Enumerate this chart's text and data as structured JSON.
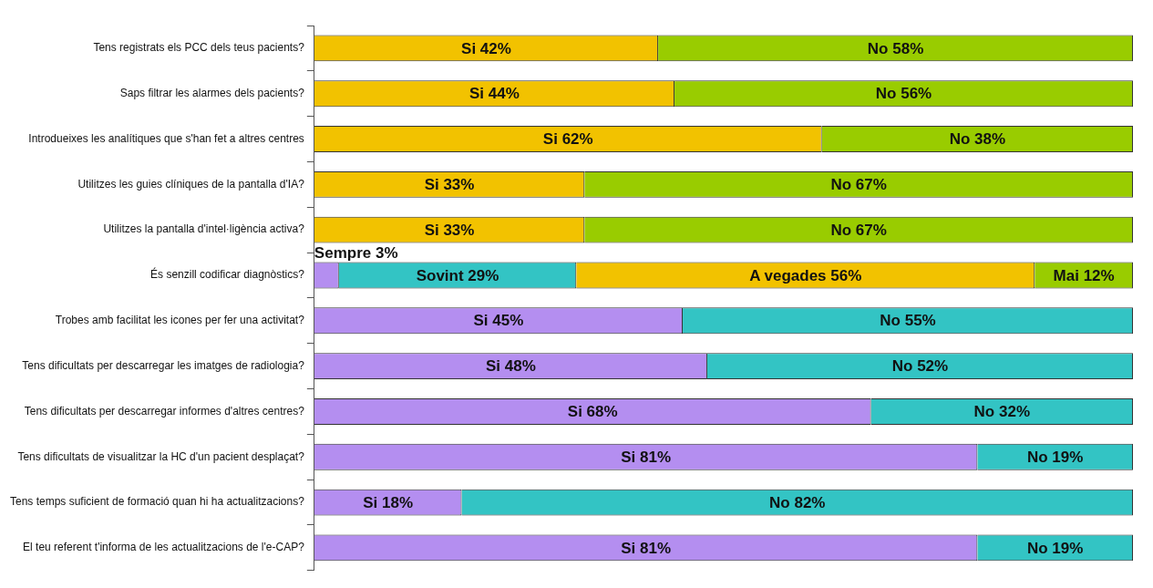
{
  "chart_data": {
    "type": "bar",
    "orientation": "horizontal",
    "stacked": true,
    "xlim": [
      0,
      100
    ],
    "tick_labels": "y",
    "categories": [
      "Tens registrats els PCC dels teus pacients?",
      "Saps filtrar les alarmes dels pacients?",
      "Introdueixes les analítiques que s'han fet a altres centres",
      "Utilitzes les guies clíniques de la pantalla d'IA?",
      "Utilitzes la pantalla d'intel·ligència activa?",
      "És senzill codificar diagnòstics?",
      "Trobes amb facilitat les icones per fer una activitat?",
      "Tens dificultats per descarregar les imatges de radiologia?",
      "Tens dificultats per descarregar informes d'altres centres?",
      "Tens dificultats de visualitzar la HC d'un pacient desplaçat?",
      "Tens temps suficient de formació quan hi ha actualitzacions?",
      "El teu referent t'informa de les actualitzacions de l'e-CAP?"
    ],
    "series": [
      {
        "values": [
          42,
          44,
          62,
          33,
          33,
          3,
          45,
          48,
          68,
          81,
          18,
          81
        ],
        "colors": [
          "#f2c200",
          "#f2c200",
          "#f2c200",
          "#f2c200",
          "#f2c200",
          "#b48ef0",
          "#b48ef0",
          "#b48ef0",
          "#b48ef0",
          "#b48ef0",
          "#b48ef0",
          "#b48ef0"
        ],
        "value_labels": [
          "Si 42%",
          "Si 44%",
          "Si 62%",
          "Si 33%",
          "Si 33%",
          "Sempre 3%",
          "Si 45%",
          "Si 48%",
          "Si 68%",
          "Si 81%",
          "Si 18%",
          "Si 81%"
        ]
      },
      {
        "values": [
          58,
          56,
          38,
          67,
          67,
          29,
          55,
          52,
          32,
          19,
          82,
          19
        ],
        "colors": [
          "#99cc00",
          "#99cc00",
          "#99cc00",
          "#99cc00",
          "#99cc00",
          "#33c4c4",
          "#33c4c4",
          "#33c4c4",
          "#33c4c4",
          "#33c4c4",
          "#33c4c4",
          "#33c4c4"
        ],
        "value_labels": [
          "No 58%",
          "No 56%",
          "No 38%",
          "No 67%",
          "No 67%",
          "Sovint 29%",
          "No 55%",
          "No 52%",
          "No 32%",
          "No 19%",
          "No 82%",
          "No 19%"
        ]
      },
      {
        "values": [
          null,
          null,
          null,
          null,
          null,
          56,
          null,
          null,
          null,
          null,
          null,
          null
        ],
        "color": "#f2c200",
        "value_labels": [
          null,
          null,
          null,
          null,
          null,
          "A vegades 56%",
          null,
          null,
          null,
          null,
          null,
          null
        ]
      },
      {
        "values": [
          null,
          null,
          null,
          null,
          null,
          12,
          null,
          null,
          null,
          null,
          null,
          null
        ],
        "color": "#99cc00",
        "value_labels": [
          null,
          null,
          null,
          null,
          null,
          "Mai 12%",
          null,
          null,
          null,
          null,
          null,
          null
        ]
      }
    ]
  }
}
